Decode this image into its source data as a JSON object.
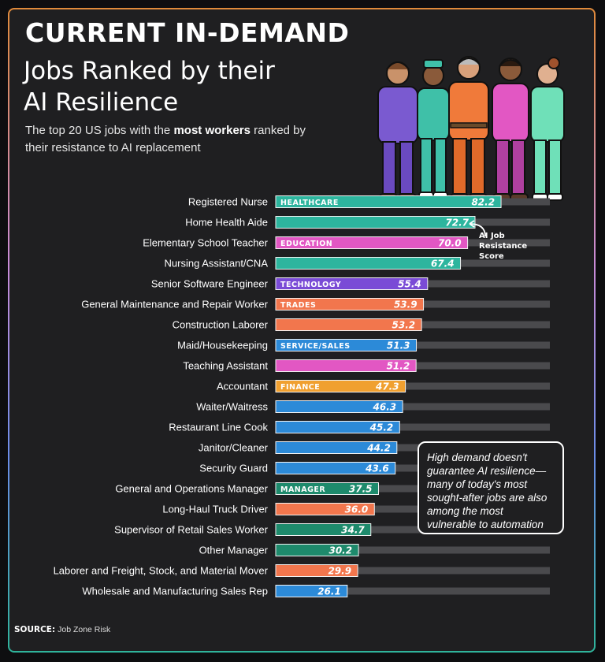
{
  "header": {
    "title_main": "CURRENT IN-DEMAND",
    "title_lines": [
      "Jobs Ranked by their",
      "AI Resilience"
    ],
    "subtitle_part1": "The top 20 US jobs with the ",
    "subtitle_bold": "most workers",
    "subtitle_part2": " ranked by their resistance to AI replacement"
  },
  "annotation": {
    "lines": [
      "AI Job",
      "Resistance",
      "Score"
    ]
  },
  "callout": {
    "text": "High demand doesn't guarantee AI resilience—many of today's most sought-after jobs are also among the most vulnerable to automation"
  },
  "source": {
    "label": "SOURCE:",
    "text": " Job Zone Risk"
  },
  "colors": {
    "background": "#1f1f21",
    "track": "#4a4a4d",
    "healthcare": "#2db59e",
    "education": "#e257c3",
    "technology": "#7a4bd6",
    "trades": "#f2764d",
    "service_sales": "#2c8ad8",
    "finance": "#f0a030",
    "manager": "#1e8a6c"
  },
  "chart_data": {
    "type": "bar",
    "orientation": "horizontal",
    "xlim": [
      0,
      100
    ],
    "categories": [
      "Registered Nurse",
      "Home Health Aide",
      "Elementary School Teacher",
      "Nursing Assistant/CNA",
      "Senior Software Engineer",
      "General Maintenance and Repair Worker",
      "Construction Laborer",
      "Maid/Housekeeping",
      "Teaching Assistant",
      "Accountant",
      "Waiter/Waitress",
      "Restaurant Line Cook",
      "Janitor/Cleaner",
      "Security Guard",
      "General and Operations Manager",
      "Long-Haul Truck Driver",
      "Supervisor of Retail Sales Worker",
      "Other Manager",
      "Laborer and Freight, Stock, and Material Mover",
      "Wholesale and Manufacturing Sales Rep"
    ],
    "values": [
      82.2,
      72.7,
      70.0,
      67.4,
      55.4,
      53.9,
      53.2,
      51.3,
      51.2,
      47.3,
      46.3,
      45.2,
      44.2,
      43.6,
      37.5,
      36.0,
      34.7,
      30.2,
      29.9,
      26.1
    ],
    "value_labels": [
      "82.2",
      "72.7",
      "70.0",
      "67.4",
      "55.4",
      "53.9",
      "53.2",
      "51.3",
      "51.2",
      "47.3",
      "46.3",
      "45.2",
      "44.2",
      "43.6",
      "37.5",
      "36.0",
      "34.7",
      "30.2",
      "29.9",
      "26.1"
    ],
    "sectors": [
      "healthcare",
      "healthcare",
      "education",
      "healthcare",
      "technology",
      "trades",
      "trades",
      "service_sales",
      "education",
      "finance",
      "service_sales",
      "service_sales",
      "service_sales",
      "service_sales",
      "manager",
      "trades",
      "manager",
      "manager",
      "trades",
      "service_sales"
    ],
    "sector_tags": [
      "HEALTHCARE",
      "",
      "EDUCATION",
      "",
      "TECHNOLOGY",
      "TRADES",
      "",
      "SERVICE/SALES",
      "",
      "FINANCE",
      "",
      "",
      "",
      "",
      "MANAGER",
      "",
      "",
      "",
      "",
      ""
    ]
  }
}
